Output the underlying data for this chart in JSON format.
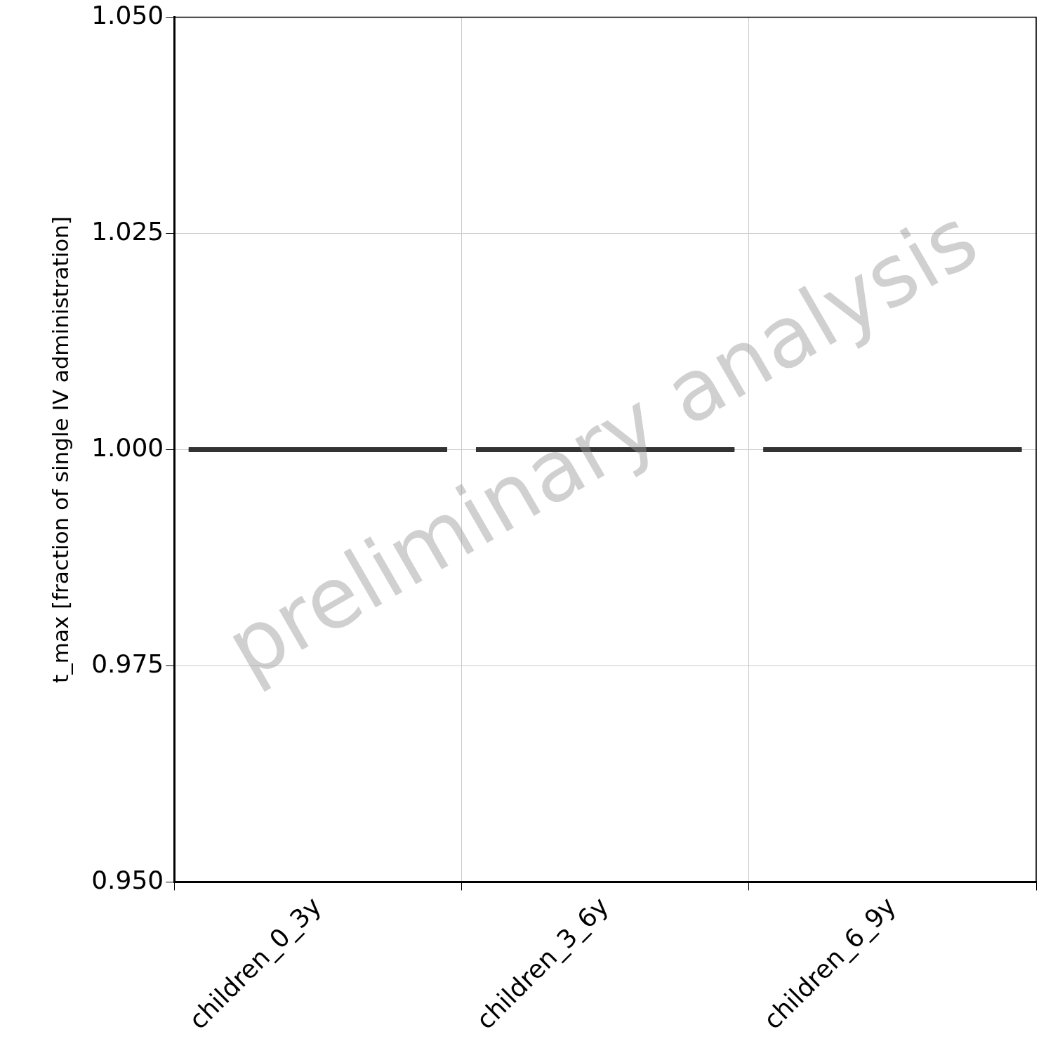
{
  "chart_data": {
    "type": "box",
    "ylabel": "t_max [fraction of single IV administration]",
    "categories": [
      "children_0_3y",
      "children_3_6y",
      "children_6_9y"
    ],
    "boxes": [
      {
        "low": 1.0,
        "q1": 1.0,
        "median": 1.0,
        "q3": 1.0,
        "high": 1.0
      },
      {
        "low": 1.0,
        "q1": 1.0,
        "median": 1.0,
        "q3": 1.0,
        "high": 1.0
      },
      {
        "low": 1.0,
        "q1": 1.0,
        "median": 1.0,
        "q3": 1.0,
        "high": 1.0
      }
    ],
    "color": "#333333",
    "ylim": [
      0.95,
      1.05
    ],
    "yticks": [
      {
        "value": 0.95,
        "label": "0.950"
      },
      {
        "value": 0.975,
        "label": "0.975"
      },
      {
        "value": 1.0,
        "label": "1.000"
      },
      {
        "value": 1.025,
        "label": "1.025"
      },
      {
        "value": 1.05,
        "label": "1.050"
      }
    ],
    "grid": true,
    "legend": false,
    "annotations": [
      "preliminary analysis"
    ]
  }
}
